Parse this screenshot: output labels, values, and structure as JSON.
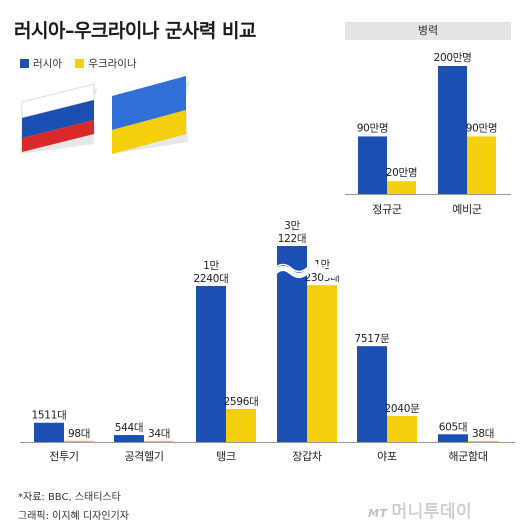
{
  "title": "러시아–우크라이나 군사력 비교",
  "legend": [
    {
      "name": "러시아",
      "color": "#1d4fb3"
    },
    {
      "name": "우크라이나",
      "color": "#f3cf0c"
    }
  ],
  "colors": {
    "russia": "#1d4fb3",
    "ukraine": "#f3cf0c",
    "axis": "#999999",
    "header_bg": "#e4e4e4"
  },
  "flags": [
    "russia-flag",
    "ukraine-flag"
  ],
  "chart_data": [
    {
      "type": "bar",
      "title": "",
      "categories": [
        "전투기",
        "공격헬기",
        "탱크",
        "장갑차",
        "야포",
        "해군함대"
      ],
      "series": [
        {
          "name": "러시아",
          "values": [
            1511,
            544,
            12240,
            30122,
            7517,
            605
          ],
          "labels": [
            [
              "1511대"
            ],
            [
              "544대"
            ],
            [
              "1만",
              "2240대"
            ],
            [
              "3만",
              "122대"
            ],
            [
              "7517문"
            ],
            [
              "605대"
            ]
          ]
        },
        {
          "name": "우크라이나",
          "values": [
            98,
            34,
            2596,
            12303,
            2040,
            38
          ],
          "labels": [
            [
              "98대"
            ],
            [
              "34대"
            ],
            [
              "2596대"
            ],
            [
              "1만",
              "2303대"
            ],
            [
              "2040문"
            ],
            [
              "38대"
            ]
          ]
        }
      ],
      "axis_break": {
        "category": "장갑차"
      },
      "xlabel": "",
      "ylabel": "",
      "grid": false
    },
    {
      "type": "bar",
      "title": "병력",
      "categories": [
        "정규군",
        "예비군"
      ],
      "series": [
        {
          "name": "러시아",
          "values": [
            90,
            200
          ],
          "labels": [
            "90만명",
            "200만명"
          ]
        },
        {
          "name": "우크라이나",
          "values": [
            20,
            90
          ],
          "labels": [
            "20만명",
            "90만명"
          ]
        }
      ],
      "unit": "만명",
      "grid": false
    }
  ],
  "source": "*자료: BBC, 스태티스타",
  "graphic_credit": "그래픽: 이지혜 디자인기자",
  "logo": {
    "mark": "MT",
    "text": "머니투데이"
  }
}
